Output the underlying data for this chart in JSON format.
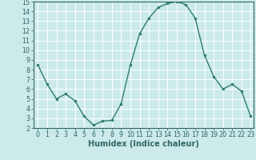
{
  "x": [
    0,
    1,
    2,
    3,
    4,
    5,
    6,
    7,
    8,
    9,
    10,
    11,
    12,
    13,
    14,
    15,
    16,
    17,
    18,
    19,
    20,
    21,
    22,
    23
  ],
  "y": [
    8.5,
    6.5,
    5.0,
    5.5,
    4.8,
    3.2,
    2.3,
    2.7,
    2.8,
    4.5,
    8.5,
    11.7,
    13.3,
    14.4,
    14.8,
    15.0,
    14.7,
    13.3,
    9.5,
    7.3,
    6.0,
    6.5,
    5.8,
    3.2
  ],
  "line_color": "#2e7d6e",
  "marker": "o",
  "markersize": 2.2,
  "linewidth": 1.0,
  "xlabel": "Humidex (Indice chaleur)",
  "xlabel_fontsize": 7,
  "xlabel_fontweight": "bold",
  "ylim": [
    2,
    15
  ],
  "xlim": [
    -0.5,
    23.3
  ],
  "yticks": [
    2,
    3,
    4,
    5,
    6,
    7,
    8,
    9,
    10,
    11,
    12,
    13,
    14,
    15
  ],
  "xticks": [
    0,
    1,
    2,
    3,
    4,
    5,
    6,
    7,
    8,
    9,
    10,
    11,
    12,
    13,
    14,
    15,
    16,
    17,
    18,
    19,
    20,
    21,
    22,
    23
  ],
  "background_color": "#cceaea",
  "grid_color": "#ffffff",
  "tick_fontsize": 5.8,
  "spine_color": "#336666"
}
